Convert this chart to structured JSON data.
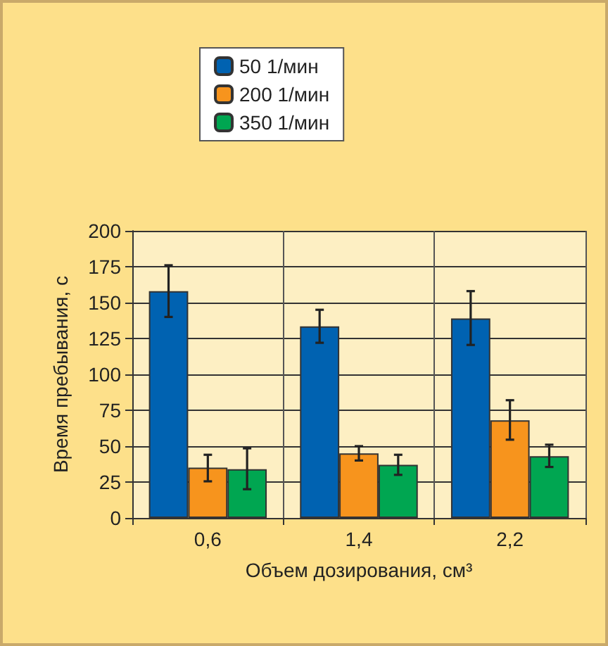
{
  "chart_data": {
    "type": "bar",
    "xlabel": "Объем дозирования, см³",
    "ylabel": "Время пребывания, с",
    "categories": [
      "0,6",
      "1,4",
      "2,2"
    ],
    "series": [
      {
        "name": "50 1/мин",
        "color": "#0062b1",
        "values": [
          158,
          133.5,
          139
        ],
        "errors": [
          [
            140,
            176
          ],
          [
            122,
            145
          ],
          [
            120.5,
            158
          ]
        ]
      },
      {
        "name": "200 1/мин",
        "color": "#f7941d",
        "values": [
          35,
          45,
          68
        ],
        "errors": [
          [
            25.5,
            44
          ],
          [
            40,
            50
          ],
          [
            54.5,
            82
          ]
        ]
      },
      {
        "name": "350 1/мин",
        "color": "#00a651",
        "values": [
          34,
          37,
          43
        ],
        "errors": [
          [
            20,
            48.5
          ],
          [
            30,
            44
          ],
          [
            35.5,
            51
          ]
        ]
      }
    ],
    "ylim": [
      0,
      200
    ],
    "yticks": [
      0,
      25,
      50,
      75,
      100,
      125,
      150,
      175,
      200
    ],
    "grid": true,
    "legend": "top"
  }
}
